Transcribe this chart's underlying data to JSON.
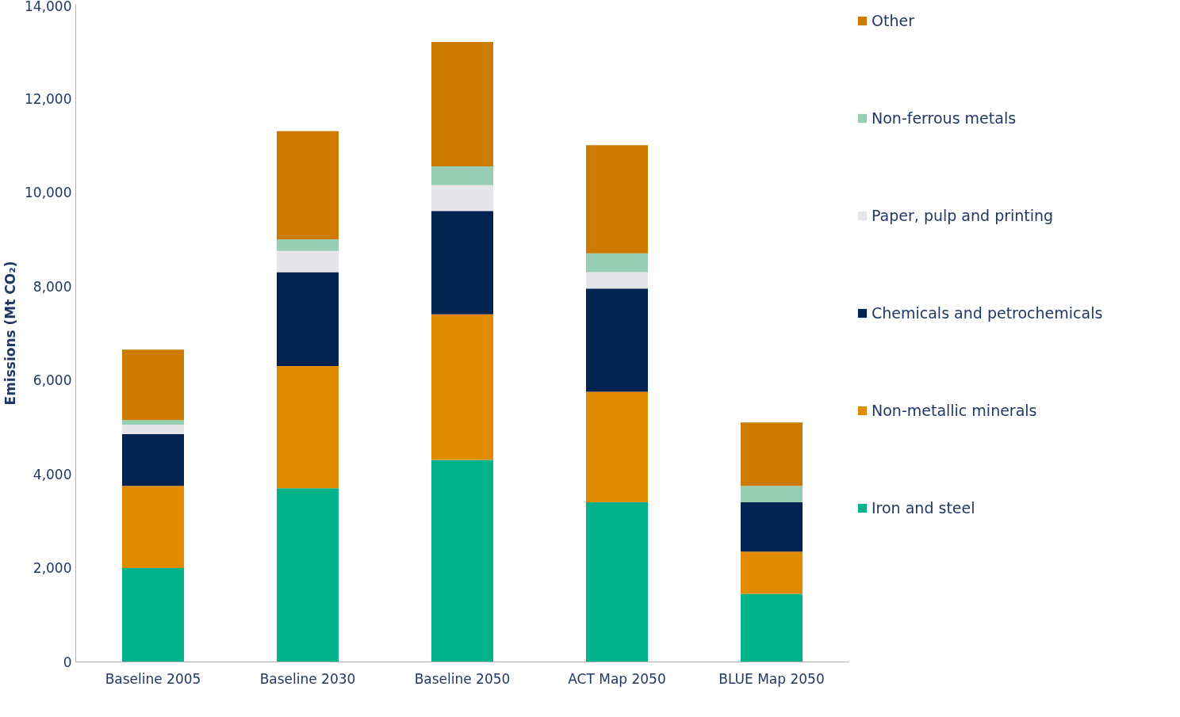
{
  "chart_data": {
    "type": "bar",
    "stacked": true,
    "ylabel": "Emissions (Mt CO₂)",
    "categories": [
      "Baseline 2005",
      "Baseline 2030",
      "Baseline 2050",
      "ACT Map 2050",
      "BLUE Map 2050"
    ],
    "series": [
      {
        "name": "Iron and steel",
        "color": "#00b38a",
        "values": [
          2000,
          3700,
          4300,
          3400,
          1450
        ]
      },
      {
        "name": "Non-metallic minerals",
        "color": "#e08a00",
        "values": [
          1750,
          2600,
          3100,
          2350,
          900
        ]
      },
      {
        "name": "Chemicals and petrochemicals",
        "color": "#002350",
        "values": [
          1100,
          2000,
          2200,
          2200,
          1050
        ]
      },
      {
        "name": "Paper, pulp and printing",
        "color": "#e6e6ea",
        "values": [
          200,
          450,
          550,
          350,
          0
        ]
      },
      {
        "name": "Non-ferrous metals",
        "color": "#96cdb4",
        "values": [
          100,
          250,
          400,
          400,
          350
        ]
      },
      {
        "name": "Other",
        "color": "#cc7a00",
        "values": [
          1500,
          2300,
          2650,
          2300,
          1350
        ]
      }
    ],
    "ylim": [
      0,
      14000
    ],
    "yticks": [
      0,
      {
        "value": 2000,
        "label": "2,000"
      },
      {
        "value": 4000,
        "label": "4,000"
      },
      {
        "value": 6000,
        "label": "6,000"
      },
      {
        "value": 8000,
        "label": "8,000"
      },
      {
        "value": 10000,
        "label": "10,000"
      },
      {
        "value": 12000,
        "label": "12,000"
      },
      {
        "value": 14000,
        "label": "14,000"
      }
    ],
    "grid": false,
    "legend": "right"
  }
}
